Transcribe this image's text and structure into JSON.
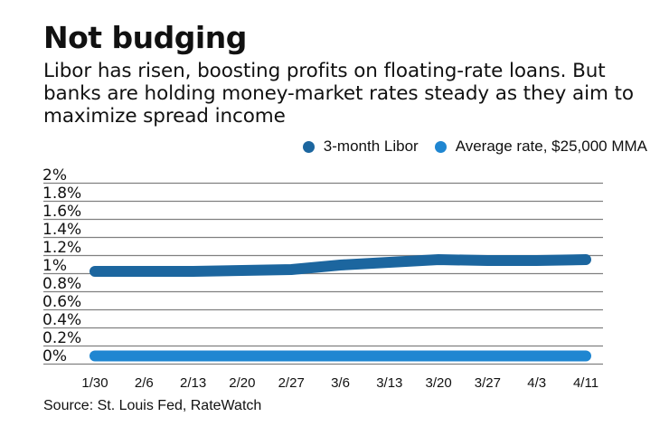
{
  "header": {
    "title": "Not budging",
    "subtitle": "Libor has risen, boosting profits on floating-rate loans. But banks are holding money-market rates steady as they aim to maximize spread income"
  },
  "legend": [
    {
      "label": "3-month Libor",
      "color": "#1c669f"
    },
    {
      "label": "Average rate, $25,000 MMA",
      "color": "#1f86d1"
    }
  ],
  "source": "Source: St. Louis Fed, RateWatch",
  "chart_data": {
    "type": "line",
    "title": "Not budging",
    "xlabel": "",
    "ylabel": "",
    "categories": [
      "1/30",
      "2/6",
      "2/13",
      "2/20",
      "2/27",
      "3/6",
      "3/13",
      "3/20",
      "3/27",
      "4/3",
      "4/11"
    ],
    "y_ticks": [
      "0%",
      "0.2%",
      "0.4%",
      "0.6%",
      "0.8%",
      "1%",
      "1.2%",
      "1.4%",
      "1.6%",
      "1.8%",
      "2%"
    ],
    "ylim": [
      0,
      2
    ],
    "grid": true,
    "legend_position": "top-right",
    "series": [
      {
        "name": "3-month Libor",
        "color": "#1c669f",
        "values": [
          1.02,
          1.02,
          1.02,
          1.03,
          1.04,
          1.09,
          1.12,
          1.15,
          1.14,
          1.14,
          1.15
        ]
      },
      {
        "name": "Average rate, $25,000 MMA",
        "color": "#1f86d1",
        "values": [
          0.085,
          0.085,
          0.085,
          0.085,
          0.085,
          0.085,
          0.085,
          0.085,
          0.085,
          0.085,
          0.085
        ]
      }
    ]
  }
}
